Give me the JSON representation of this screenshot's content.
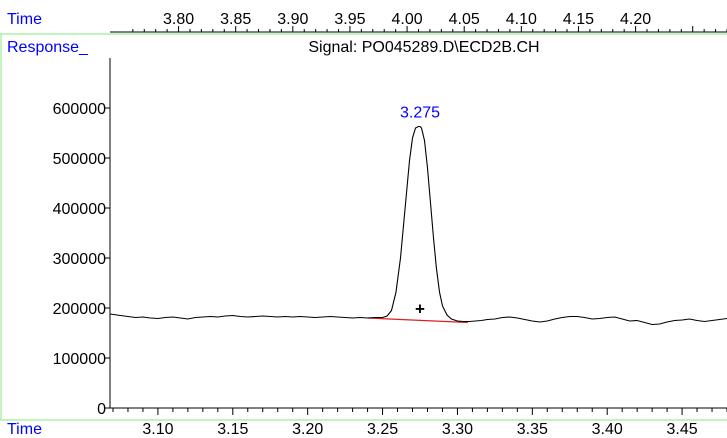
{
  "chart_data": {
    "type": "line",
    "title": "Signal: PO045289.D\\ECD2B.CH",
    "top_axis": {
      "label": "Time",
      "range": [
        3.74,
        4.28
      ],
      "ticks": [
        "3.80",
        "3.85",
        "3.90",
        "3.95",
        "4.00",
        "4.05",
        "4.10",
        "4.15",
        "4.20"
      ]
    },
    "xlabel": "Time",
    "ylabel": "Response_",
    "xlim": [
      3.068,
      3.48
    ],
    "ylim": [
      0,
      650000
    ],
    "x_ticks": [
      "3.10",
      "3.15",
      "3.20",
      "3.25",
      "3.30",
      "3.35",
      "3.40",
      "3.45"
    ],
    "y_ticks": [
      "0",
      "100000",
      "200000",
      "300000",
      "400000",
      "500000",
      "600000"
    ],
    "peak": {
      "label": "3.275",
      "rt": 3.275,
      "apex": 563000,
      "marker": "+",
      "marker_x": 3.275,
      "marker_y": 199000
    },
    "baseline": {
      "x": [
        3.24,
        3.307
      ],
      "y": [
        180000,
        171000
      ]
    },
    "series": [
      {
        "x": [
          3.068,
          3.075,
          3.08,
          3.085,
          3.09,
          3.095,
          3.1,
          3.105,
          3.11,
          3.115,
          3.12,
          3.125,
          3.13,
          3.135,
          3.14,
          3.145,
          3.15,
          3.155,
          3.16,
          3.165,
          3.17,
          3.175,
          3.18,
          3.185,
          3.19,
          3.195,
          3.2,
          3.205,
          3.21,
          3.215,
          3.22,
          3.225,
          3.23,
          3.235,
          3.24,
          3.245,
          3.25,
          3.253,
          3.256,
          3.259,
          3.262,
          3.264,
          3.266,
          3.268,
          3.27,
          3.272,
          3.274,
          3.275,
          3.276,
          3.278,
          3.28,
          3.282,
          3.284,
          3.286,
          3.288,
          3.29,
          3.293,
          3.296,
          3.3,
          3.304,
          3.308,
          3.312,
          3.316,
          3.32,
          3.325,
          3.33,
          3.335,
          3.34,
          3.345,
          3.35,
          3.355,
          3.36,
          3.365,
          3.37,
          3.375,
          3.38,
          3.385,
          3.39,
          3.395,
          3.4,
          3.405,
          3.41,
          3.415,
          3.42,
          3.425,
          3.43,
          3.435,
          3.44,
          3.445,
          3.45,
          3.455,
          3.46,
          3.465,
          3.47,
          3.475,
          3.48
        ],
        "y": [
          188000,
          185000,
          183000,
          181000,
          182000,
          180000,
          179000,
          181000,
          182000,
          180000,
          178000,
          181000,
          182000,
          183000,
          182000,
          184000,
          185000,
          183000,
          182000,
          183000,
          184000,
          183000,
          182000,
          183000,
          182000,
          183000,
          182000,
          181000,
          182000,
          183000,
          182000,
          181000,
          180000,
          181000,
          180000,
          181000,
          181000,
          184000,
          195000,
          232000,
          300000,
          365000,
          430000,
          495000,
          540000,
          560000,
          563000,
          563000,
          560000,
          535000,
          480000,
          410000,
          340000,
          278000,
          232000,
          204000,
          186000,
          178000,
          174000,
          173000,
          173000,
          174000,
          175000,
          177000,
          178000,
          181000,
          182000,
          180000,
          177000,
          174000,
          172000,
          174000,
          178000,
          181000,
          183000,
          183000,
          181000,
          178000,
          179000,
          181000,
          182000,
          178000,
          174000,
          175000,
          171000,
          167000,
          168000,
          172000,
          175000,
          176000,
          178000,
          175000,
          173000,
          175000,
          177000,
          179000
        ]
      }
    ],
    "colors": {
      "axis": "#000000",
      "trace": "#000000",
      "baseline": "#e02020",
      "peak_label": "#0000ff",
      "axis_title": "#0000ff",
      "frame": "#99ee99"
    }
  }
}
